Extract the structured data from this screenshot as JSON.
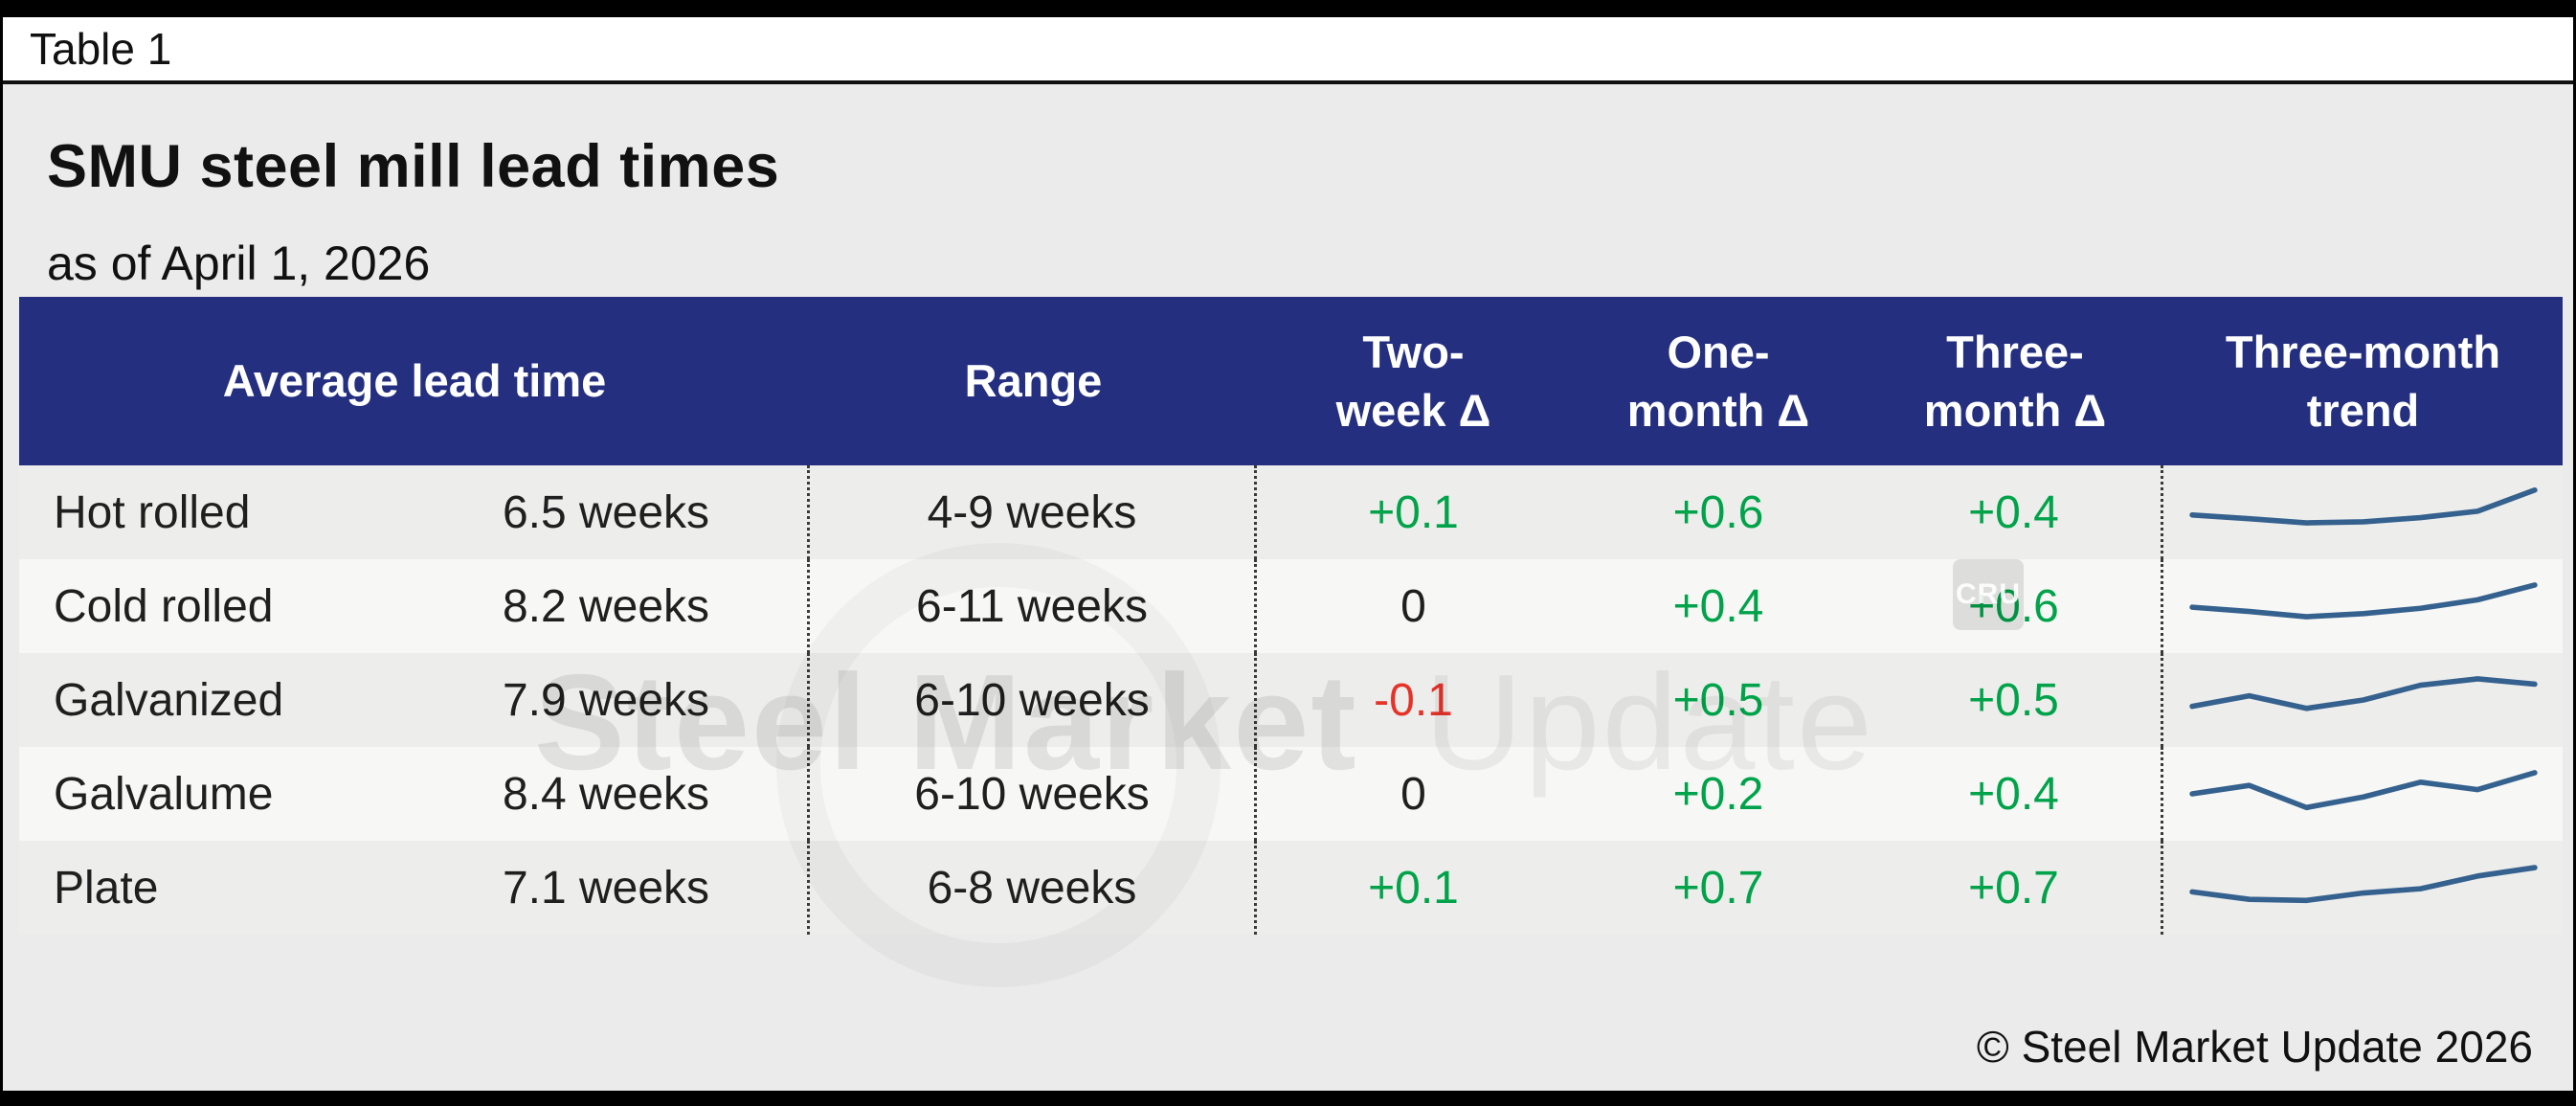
{
  "page": {
    "tag": "Table 1",
    "title": "SMU steel mill lead times",
    "subtitle": "as of April 1, 2026",
    "footer": "© Steel Market Update 2026"
  },
  "watermark": {
    "text_bold": "Steel Market",
    "text_light": "Update",
    "logo": "CRU"
  },
  "colors": {
    "header_bg": "#242f7f",
    "positive": "#00a34a",
    "negative": "#e63229",
    "neutral": "#1f1f1f",
    "sparkline": "#35618e"
  },
  "table": {
    "headers": {
      "avg_lead_time": "Average lead time",
      "range": "Range",
      "two_week": "Two-\nweek Δ",
      "one_month": "One-\nmonth Δ",
      "three_month": "Three-\nmonth Δ",
      "trend": "Three-month\ntrend"
    },
    "rows": [
      {
        "product": "Hot rolled",
        "avg": "6.5 weeks",
        "range": "4-9 weeks",
        "two_week": "+0.1",
        "one_month": "+0.6",
        "three_month": "+0.4"
      },
      {
        "product": "Cold rolled",
        "avg": "8.2 weeks",
        "range": "6-11 weeks",
        "two_week": "0",
        "one_month": "+0.4",
        "three_month": "+0.6"
      },
      {
        "product": "Galvanized",
        "avg": "7.9 weeks",
        "range": "6-10 weeks",
        "two_week": "-0.1",
        "one_month": "+0.5",
        "three_month": "+0.5"
      },
      {
        "product": "Galvalume",
        "avg": "8.4 weeks",
        "range": "6-10 weeks",
        "two_week": "0",
        "one_month": "+0.2",
        "three_month": "+0.4"
      },
      {
        "product": "Plate",
        "avg": "7.1 weeks",
        "range": "6-8 weeks",
        "two_week": "+0.1",
        "one_month": "+0.7",
        "three_month": "+0.7"
      }
    ]
  },
  "chart_data": {
    "type": "table",
    "title": "SMU steel mill lead times",
    "as_of": "April 1, 2026",
    "columns": [
      "Product",
      "Average lead time",
      "Range",
      "Two-week Δ",
      "One-month Δ",
      "Three-month Δ",
      "Three-month trend"
    ],
    "rows": [
      [
        "Hot rolled",
        "6.5 weeks",
        "4-9 weeks",
        "+0.1",
        "+0.6",
        "+0.4",
        "rising"
      ],
      [
        "Cold rolled",
        "8.2 weeks",
        "6-11 weeks",
        "0",
        "+0.4",
        "+0.6",
        "rising"
      ],
      [
        "Galvanized",
        "7.9 weeks",
        "6-10 weeks",
        "-0.1",
        "+0.5",
        "+0.5",
        "rising"
      ],
      [
        "Galvalume",
        "8.4 weeks",
        "6-10 weeks",
        "0",
        "+0.2",
        "+0.4",
        "rising"
      ],
      [
        "Plate",
        "7.1 weeks",
        "6-8 weeks",
        "+0.1",
        "+0.7",
        "+0.7",
        "rising"
      ]
    ],
    "sparklines": [
      {
        "name": "Hot rolled",
        "normalized_values": [
          0.45,
          0.38,
          0.3,
          0.32,
          0.4,
          0.52,
          0.92
        ]
      },
      {
        "name": "Cold rolled",
        "normalized_values": [
          0.48,
          0.4,
          0.3,
          0.36,
          0.46,
          0.62,
          0.9
        ]
      },
      {
        "name": "Galvanized",
        "normalized_values": [
          0.38,
          0.58,
          0.34,
          0.5,
          0.78,
          0.9,
          0.8
        ]
      },
      {
        "name": "Galvalume",
        "normalized_values": [
          0.5,
          0.66,
          0.24,
          0.44,
          0.72,
          0.58,
          0.9
        ]
      },
      {
        "name": "Plate",
        "normalized_values": [
          0.42,
          0.28,
          0.26,
          0.4,
          0.48,
          0.72,
          0.88
        ]
      }
    ]
  }
}
